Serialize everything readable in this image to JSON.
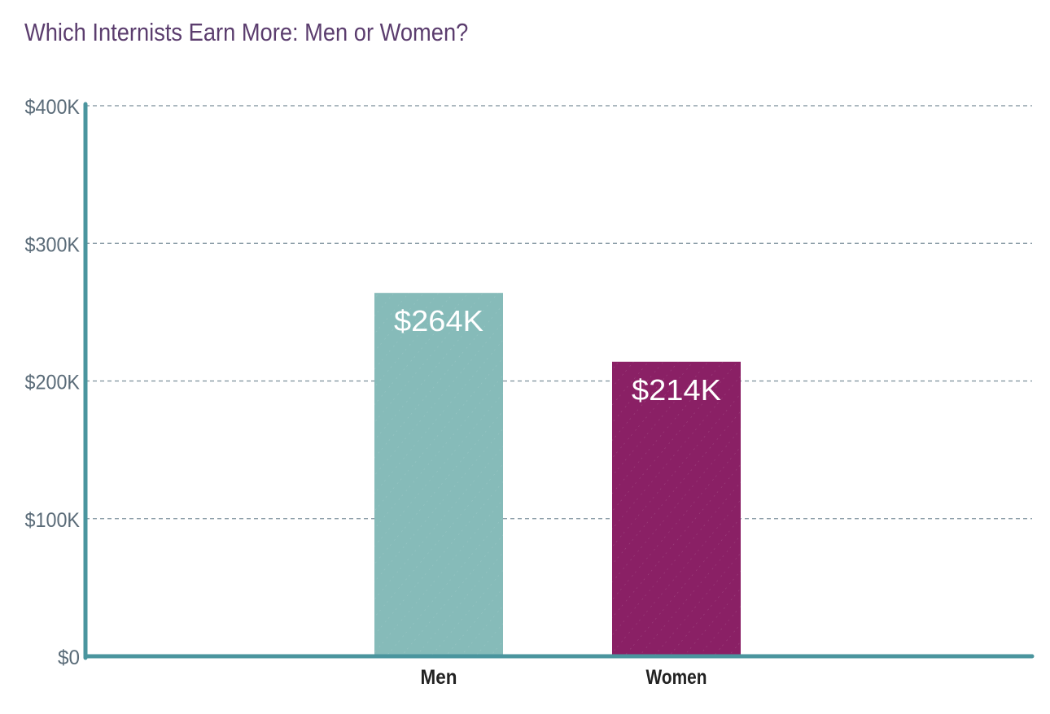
{
  "chart_data": {
    "type": "bar",
    "title": "Which Internists Earn More: Men or Women?",
    "categories": [
      "Men",
      "Women"
    ],
    "values": [
      264,
      214
    ],
    "value_labels": [
      "$264K",
      "$214K"
    ],
    "ylim": [
      0,
      400
    ],
    "yticks": [
      0,
      100,
      200,
      300,
      400
    ],
    "ytick_labels": [
      "$0",
      "$100K",
      "$200K",
      "$300K",
      "$400K"
    ],
    "xlabel": "",
    "ylabel": "",
    "grid": true,
    "colors": {
      "bars": [
        "#86bbb9",
        "#8a2065"
      ],
      "axis": "#4a959e",
      "grid": "#7a8e99",
      "title": "#5b3d6e"
    }
  }
}
